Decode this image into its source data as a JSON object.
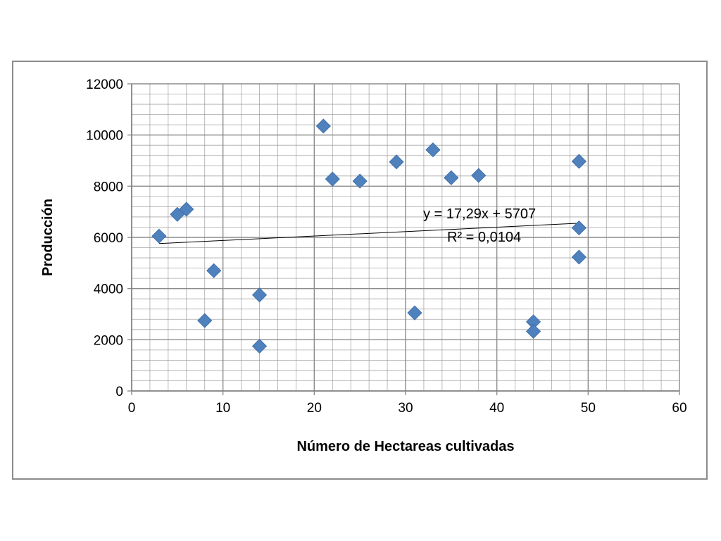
{
  "chart_data": {
    "type": "scatter",
    "xlabel": "Número de Hectareas cultivadas",
    "ylabel": "Producción",
    "xlim": [
      0,
      60
    ],
    "ylim": [
      0,
      12000
    ],
    "x_ticks": [
      "0",
      "10",
      "20",
      "30",
      "40",
      "50",
      "60"
    ],
    "y_ticks": [
      "0",
      "2000",
      "4000",
      "6000",
      "8000",
      "10000",
      "12000"
    ],
    "grid": {
      "major": true,
      "minor": true
    },
    "series": [
      {
        "marker": "diamond",
        "color": "#4F81BD",
        "points": [
          {
            "x": 3,
            "y": 6050
          },
          {
            "x": 5,
            "y": 6900
          },
          {
            "x": 6,
            "y": 7100
          },
          {
            "x": 8,
            "y": 2750
          },
          {
            "x": 9,
            "y": 4700
          },
          {
            "x": 14,
            "y": 3750
          },
          {
            "x": 14,
            "y": 1750
          },
          {
            "x": 21,
            "y": 10350
          },
          {
            "x": 22,
            "y": 8280
          },
          {
            "x": 25,
            "y": 8200
          },
          {
            "x": 29,
            "y": 8950
          },
          {
            "x": 31,
            "y": 3050
          },
          {
            "x": 33,
            "y": 9420
          },
          {
            "x": 35,
            "y": 8330
          },
          {
            "x": 38,
            "y": 8420
          },
          {
            "x": 44,
            "y": 2700
          },
          {
            "x": 44,
            "y": 2330
          },
          {
            "x": 49,
            "y": 8970
          },
          {
            "x": 49,
            "y": 6370
          },
          {
            "x": 49,
            "y": 5230
          }
        ]
      }
    ],
    "trendline": {
      "slope": 17.29,
      "intercept": 5707,
      "x_range": [
        3,
        49
      ],
      "equation_label": "y = 17,29x + 5707",
      "r2_label": "R² = 0,0104"
    },
    "colors": {
      "marker": "#4F81BD",
      "grid": "#8c8c8c",
      "trendline": "#000000",
      "frame": "#8c8c8c"
    }
  }
}
